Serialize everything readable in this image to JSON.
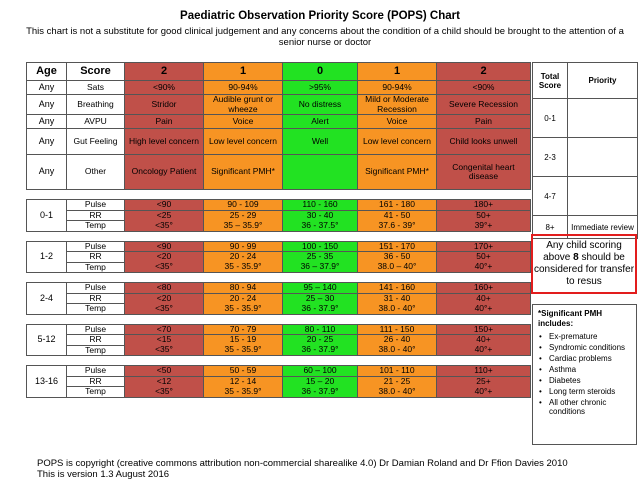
{
  "header": {
    "title": "Paediatric Observation Priority Score (POPS) Chart",
    "subtitle": "This chart is not a substitute for good clinical judgement and any concerns about the condition of a child should be brought to the attention of a senior nurse or doctor"
  },
  "table": {
    "head": [
      "Age",
      "Score",
      "2",
      "1",
      "0",
      "1",
      "2"
    ],
    "general": [
      {
        "age": "Any",
        "label": "Sats",
        "cells": [
          "<90%",
          "90-94%",
          ">95%",
          "90-94%",
          "<90%"
        ]
      },
      {
        "age": "Any",
        "label": "Breathing",
        "cells": [
          "Stridor",
          "Audible grunt or wheeze",
          "No distress",
          "Mild or Moderate Recession",
          "Severe Recession"
        ]
      },
      {
        "age": "Any",
        "label": "AVPU",
        "cells": [
          "Pain",
          "Voice",
          "Alert",
          "Voice",
          "Pain"
        ]
      },
      {
        "age": "Any",
        "label": "Gut Feeling",
        "cells": [
          "High level concern",
          "Low level concern",
          "Well",
          "Low level concern",
          "Child looks unwell"
        ]
      },
      {
        "age": "Any",
        "label": "Other",
        "cells": [
          "Oncology Patient",
          "Significant PMH*",
          "",
          "Significant PMH*",
          "Congenital heart disease"
        ]
      }
    ],
    "ages": [
      {
        "age": "0-1",
        "rows": [
          {
            "label": "Pulse",
            "cells": [
              "<90",
              "90 - 109",
              "110 - 160",
              "161 - 180",
              "180+"
            ]
          },
          {
            "label": "RR",
            "cells": [
              "<25",
              "25 - 29",
              "30 - 40",
              "41 - 50",
              "50+"
            ]
          },
          {
            "label": "Temp",
            "cells": [
              "<35°",
              "35 – 35.9°",
              "36 - 37.5°",
              "37.6 - 39°",
              "39°+"
            ]
          }
        ]
      },
      {
        "age": "1-2",
        "rows": [
          {
            "label": "Pulse",
            "cells": [
              "<90",
              "90 - 99",
              "100 - 150",
              "151 - 170",
              "170+"
            ]
          },
          {
            "label": "RR",
            "cells": [
              "<20",
              "20 - 24",
              "25 - 35",
              "36 - 50",
              "50+"
            ]
          },
          {
            "label": "Temp",
            "cells": [
              "<35°",
              "35 - 35.9°",
              "36 – 37.9°",
              "38.0 – 40°",
              "40°+"
            ]
          }
        ]
      },
      {
        "age": "2-4",
        "rows": [
          {
            "label": "Pulse",
            "cells": [
              "<80",
              "80 - 94",
              "95 – 140",
              "141 - 160",
              "160+"
            ]
          },
          {
            "label": "RR",
            "cells": [
              "<20",
              "20 - 24",
              "25 – 30",
              "31 - 40",
              "40+"
            ]
          },
          {
            "label": "Temp",
            "cells": [
              "<35°",
              "35 - 35.9°",
              "36 - 37.9°",
              "38.0 - 40°",
              "40°+"
            ]
          }
        ]
      },
      {
        "age": "5-12",
        "rows": [
          {
            "label": "Pulse",
            "cells": [
              "<70",
              "70 - 79",
              "80 - 110",
              "111 - 150",
              "150+"
            ]
          },
          {
            "label": "RR",
            "cells": [
              "<15",
              "15 - 19",
              "20 - 25",
              "26 - 40",
              "40+"
            ]
          },
          {
            "label": "Temp",
            "cells": [
              "<35°",
              "35 - 35.9°",
              "36 - 37.9°",
              "38.0 - 40°",
              "40°+"
            ]
          }
        ]
      },
      {
        "age": "13-16",
        "rows": [
          {
            "label": "Pulse",
            "cells": [
              "<50",
              "50 - 59",
              "60 – 100",
              "101 - 110",
              "110+"
            ]
          },
          {
            "label": "RR",
            "cells": [
              "<12",
              "12 - 14",
              "15 – 20",
              "21 - 25",
              "25+"
            ]
          },
          {
            "label": "Temp",
            "cells": [
              "<35°",
              "35 - 35.9°",
              "36 - 37.9°",
              "38.0 - 40°",
              "40°+"
            ]
          }
        ]
      }
    ]
  },
  "priority": {
    "head_total": "Total Score",
    "head_priority": "Priority",
    "rows": [
      {
        "score": "0-1",
        "priority": ""
      },
      {
        "score": "2-3",
        "priority": ""
      },
      {
        "score": "4-7",
        "priority": ""
      },
      {
        "score": "8+",
        "priority": "Immediate review"
      }
    ]
  },
  "alert": {
    "pre": "Any child scoring above",
    "num": "8",
    "post": "should be considered for transfer to resus"
  },
  "pmh": {
    "title": "*Significant PMH includes:",
    "items": [
      "Ex-premature",
      "Syndromic conditions",
      "Cardiac problems",
      "Asthma",
      "Diabetes",
      "Long term steroids",
      "All other chronic conditions"
    ]
  },
  "footer": {
    "line1": "POPS is copyright (creative commons attribution non-commercial sharealike 4.0) Dr Damian Roland and Dr Ffion Davies 2010",
    "line2": "This is version 1.3 August 2016"
  },
  "colors": {
    "red": "#c05049",
    "orange": "#f79423",
    "green": "#22e222",
    "alert_border": "#e21d1d"
  }
}
